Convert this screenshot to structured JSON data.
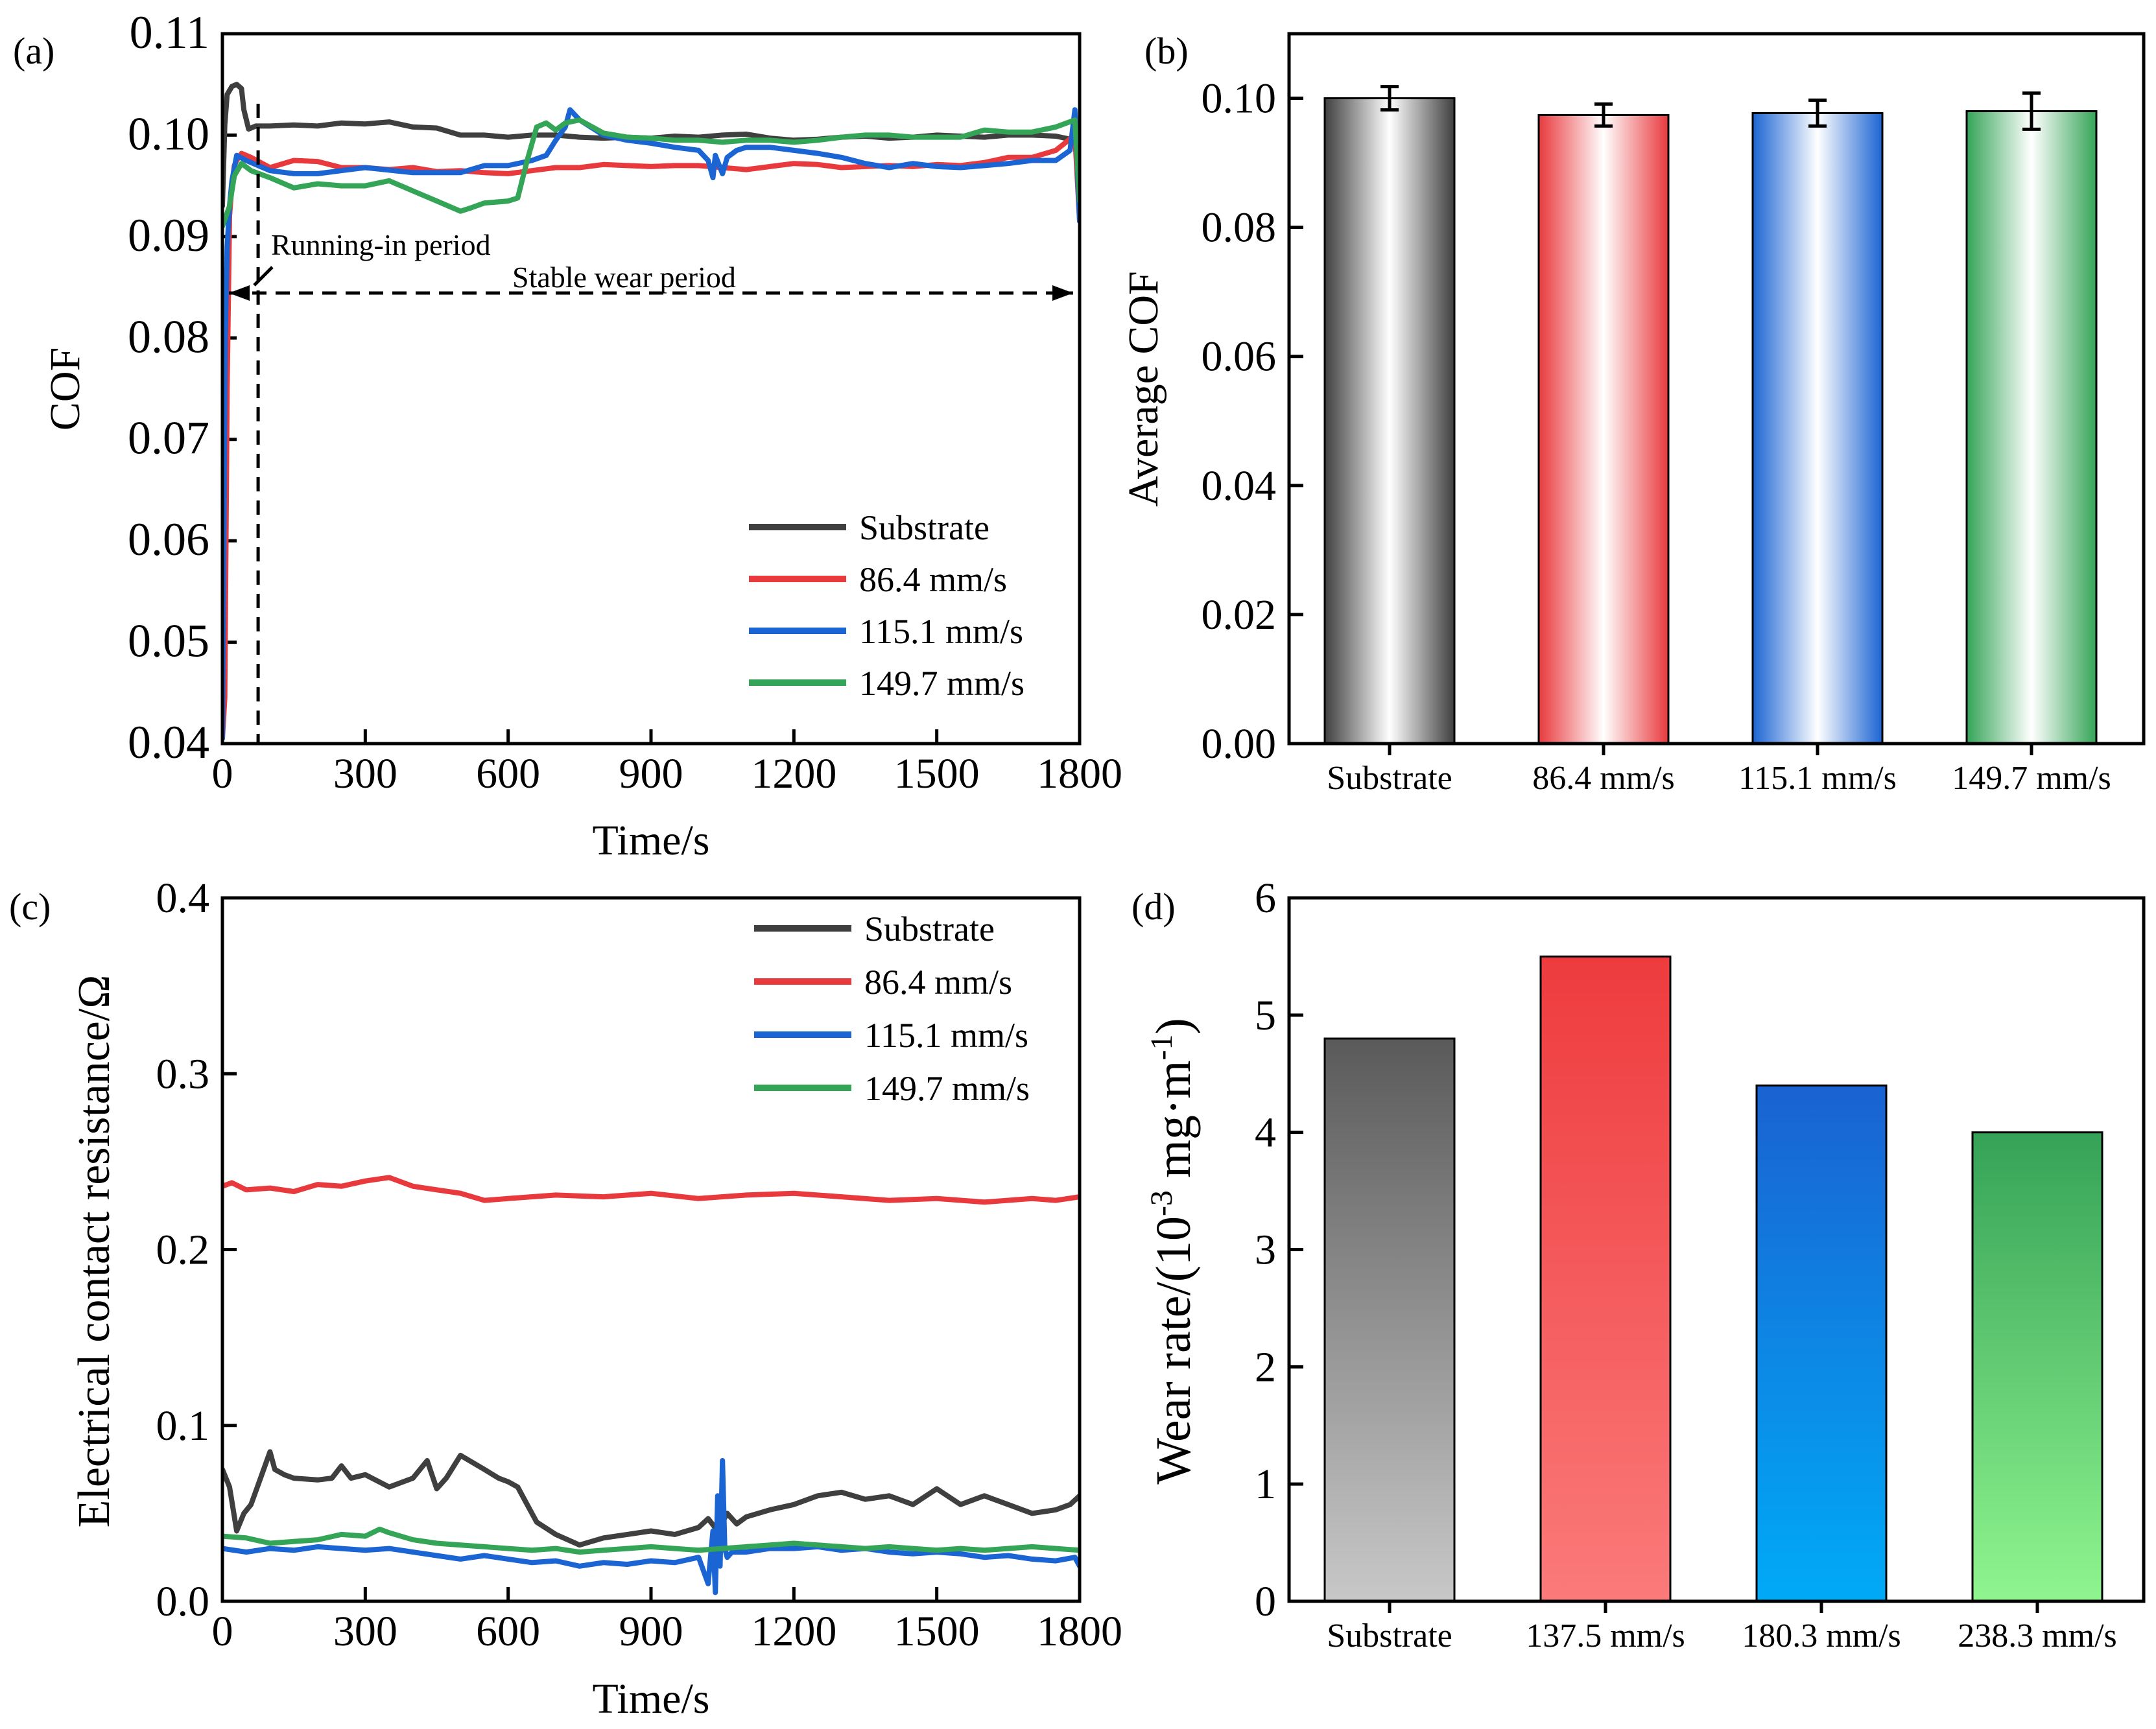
{
  "chart_data": [
    {
      "panel": "(a)",
      "type": "line",
      "xlabel": "Time/s",
      "ylabel": "COF",
      "xlim": [
        0,
        1800
      ],
      "ylim": [
        0.04,
        0.11
      ],
      "xticks": [
        "0",
        "300",
        "600",
        "900",
        "1200",
        "1500",
        "1800"
      ],
      "yticks": [
        "0.04",
        "0.05",
        "0.06",
        "0.07",
        "0.08",
        "0.09",
        "0.10",
        "0.11"
      ],
      "annotations": {
        "running_in": "Running-in period",
        "stable": "Stable wear period",
        "divider_x": 75
      },
      "legend_position": "bottom-right",
      "series": [
        {
          "name": "Substrate",
          "color": "#3f3f3f",
          "x": [
            0,
            5,
            10,
            20,
            30,
            40,
            45,
            55,
            70,
            100,
            150,
            200,
            250,
            300,
            350,
            400,
            450,
            500,
            550,
            600,
            650,
            700,
            750,
            800,
            850,
            900,
            950,
            1000,
            1050,
            1100,
            1150,
            1200,
            1250,
            1300,
            1350,
            1400,
            1450,
            1500,
            1550,
            1600,
            1650,
            1700,
            1750,
            1790,
            1800
          ],
          "y": [
            0.093,
            0.101,
            0.104,
            0.1048,
            0.105,
            0.1046,
            0.1025,
            0.1006,
            0.1009,
            0.1009,
            0.101,
            0.1009,
            0.1012,
            0.1011,
            0.1013,
            0.1008,
            0.1007,
            0.1,
            0.1,
            0.0998,
            0.1,
            0.1,
            0.0998,
            0.0997,
            0.0998,
            0.0997,
            0.0999,
            0.0998,
            0.1,
            0.1001,
            0.0997,
            0.0995,
            0.0996,
            0.0998,
            0.0999,
            0.0997,
            0.0998,
            0.1,
            0.0999,
            0.0998,
            0.1,
            0.1,
            0.0999,
            0.0995,
            0.0993
          ]
        },
        {
          "name": "86.4 mm/s",
          "color": "#e8393d",
          "x": [
            0,
            5,
            10,
            15,
            20,
            25,
            30,
            40,
            60,
            100,
            150,
            200,
            250,
            300,
            350,
            400,
            450,
            500,
            550,
            600,
            650,
            700,
            750,
            800,
            850,
            900,
            950,
            1000,
            1050,
            1100,
            1150,
            1200,
            1250,
            1300,
            1350,
            1400,
            1450,
            1500,
            1550,
            1600,
            1650,
            1700,
            1750,
            1790,
            1800
          ],
          "y": [
            0.0405,
            0.0445,
            0.075,
            0.092,
            0.095,
            0.097,
            0.0975,
            0.0982,
            0.0978,
            0.0968,
            0.0975,
            0.0974,
            0.0968,
            0.0968,
            0.0966,
            0.0968,
            0.0964,
            0.0965,
            0.0963,
            0.0962,
            0.0965,
            0.0968,
            0.0968,
            0.0971,
            0.097,
            0.0969,
            0.097,
            0.097,
            0.0968,
            0.0966,
            0.0969,
            0.0972,
            0.0971,
            0.0968,
            0.0969,
            0.097,
            0.0969,
            0.0971,
            0.097,
            0.0973,
            0.0978,
            0.0978,
            0.0985,
            0.1,
            0.0915
          ]
        },
        {
          "name": "115.1 mm/s",
          "color": "#1b64d3",
          "x": [
            0,
            3,
            6,
            10,
            15,
            20,
            30,
            50,
            100,
            150,
            200,
            250,
            300,
            400,
            500,
            550,
            600,
            650,
            680,
            700,
            720,
            730,
            750,
            800,
            850,
            900,
            950,
            1000,
            1020,
            1030,
            1035,
            1050,
            1060,
            1080,
            1100,
            1150,
            1200,
            1250,
            1300,
            1350,
            1400,
            1450,
            1500,
            1550,
            1600,
            1650,
            1700,
            1750,
            1780,
            1790,
            1800
          ],
          "y": [
            0.0405,
            0.06,
            0.08,
            0.089,
            0.093,
            0.0955,
            0.098,
            0.0975,
            0.0965,
            0.0962,
            0.0962,
            0.0965,
            0.0968,
            0.0963,
            0.0963,
            0.097,
            0.097,
            0.0975,
            0.098,
            0.0995,
            0.1008,
            0.1025,
            0.1015,
            0.1,
            0.0995,
            0.0992,
            0.0988,
            0.0985,
            0.0975,
            0.0958,
            0.098,
            0.0962,
            0.0978,
            0.0985,
            0.0988,
            0.0988,
            0.0985,
            0.0982,
            0.0978,
            0.0972,
            0.0968,
            0.0972,
            0.0969,
            0.0968,
            0.097,
            0.0972,
            0.0975,
            0.0975,
            0.0985,
            0.1025,
            0.0915
          ]
        },
        {
          "name": "149.7 mm/s",
          "color": "#34a457",
          "x": [
            0,
            15,
            25,
            40,
            60,
            100,
            150,
            200,
            250,
            300,
            350,
            400,
            450,
            500,
            520,
            550,
            600,
            620,
            640,
            660,
            680,
            700,
            720,
            750,
            800,
            850,
            900,
            950,
            1000,
            1050,
            1100,
            1150,
            1200,
            1250,
            1300,
            1350,
            1400,
            1450,
            1500,
            1550,
            1600,
            1650,
            1700,
            1750,
            1790,
            1800
          ],
          "y": [
            0.091,
            0.093,
            0.096,
            0.0972,
            0.0965,
            0.0958,
            0.0948,
            0.0952,
            0.095,
            0.095,
            0.0955,
            0.0945,
            0.0935,
            0.0925,
            0.0928,
            0.0933,
            0.0935,
            0.0938,
            0.0975,
            0.1008,
            0.1012,
            0.1005,
            0.1012,
            0.1015,
            0.1002,
            0.0998,
            0.0997,
            0.0995,
            0.0995,
            0.0993,
            0.0995,
            0.0995,
            0.0993,
            0.0995,
            0.0998,
            0.1,
            0.1,
            0.0998,
            0.0998,
            0.0998,
            0.1005,
            0.1003,
            0.1003,
            0.1008,
            0.1015,
            0.0935
          ]
        }
      ]
    },
    {
      "panel": "(b)",
      "type": "bar",
      "xlabel": "",
      "ylabel": "Average COF",
      "ylim": [
        0,
        0.11
      ],
      "yticks": [
        "0.00",
        "0.02",
        "0.04",
        "0.06",
        "0.08",
        "0.10"
      ],
      "categories": [
        "Substrate",
        "86.4 mm/s",
        "115.1 mm/s",
        "149.7 mm/s"
      ],
      "values": [
        0.1,
        0.0974,
        0.0977,
        0.098
      ],
      "errors": [
        0.0018,
        0.0017,
        0.002,
        0.0028
      ],
      "colors": [
        "#3f3f3f",
        "#e8393d",
        "#1b64d3",
        "#34a457"
      ]
    },
    {
      "panel": "(c)",
      "type": "line",
      "xlabel": "Time/s",
      "ylabel": "Electrical contact resistance/Ω",
      "xlim": [
        0,
        1800
      ],
      "ylim": [
        0,
        0.4
      ],
      "xticks": [
        "0",
        "300",
        "600",
        "900",
        "1200",
        "1500",
        "1800"
      ],
      "yticks": [
        "0.0",
        "0.1",
        "0.2",
        "0.3",
        "0.4"
      ],
      "legend_position": "top-right",
      "series": [
        {
          "name": "Substrate",
          "color": "#3f3f3f",
          "x": [
            0,
            15,
            30,
            45,
            60,
            80,
            100,
            110,
            130,
            150,
            200,
            230,
            250,
            270,
            300,
            350,
            400,
            430,
            450,
            470,
            500,
            550,
            580,
            600,
            620,
            640,
            660,
            700,
            750,
            800,
            850,
            900,
            950,
            1000,
            1020,
            1040,
            1060,
            1080,
            1100,
            1150,
            1200,
            1250,
            1300,
            1350,
            1400,
            1450,
            1500,
            1550,
            1600,
            1650,
            1700,
            1750,
            1780,
            1800
          ],
          "y": [
            0.075,
            0.065,
            0.04,
            0.05,
            0.055,
            0.07,
            0.085,
            0.075,
            0.072,
            0.07,
            0.069,
            0.07,
            0.077,
            0.07,
            0.072,
            0.065,
            0.07,
            0.08,
            0.064,
            0.07,
            0.083,
            0.075,
            0.07,
            0.068,
            0.065,
            0.055,
            0.045,
            0.038,
            0.032,
            0.036,
            0.038,
            0.04,
            0.038,
            0.042,
            0.047,
            0.04,
            0.05,
            0.044,
            0.048,
            0.052,
            0.055,
            0.06,
            0.062,
            0.058,
            0.06,
            0.055,
            0.064,
            0.055,
            0.06,
            0.055,
            0.05,
            0.052,
            0.055,
            0.06
          ]
        },
        {
          "name": "86.4 mm/s",
          "color": "#e8393d",
          "x": [
            0,
            20,
            50,
            100,
            150,
            200,
            250,
            300,
            350,
            400,
            450,
            500,
            550,
            600,
            700,
            800,
            900,
            1000,
            1100,
            1200,
            1300,
            1400,
            1500,
            1600,
            1700,
            1750,
            1800
          ],
          "y": [
            0.236,
            0.238,
            0.234,
            0.235,
            0.233,
            0.237,
            0.236,
            0.239,
            0.241,
            0.236,
            0.234,
            0.232,
            0.228,
            0.229,
            0.231,
            0.23,
            0.232,
            0.229,
            0.231,
            0.232,
            0.23,
            0.228,
            0.229,
            0.227,
            0.229,
            0.228,
            0.23
          ]
        },
        {
          "name": "115.1 mm/s",
          "color": "#1b64d3",
          "x": [
            0,
            50,
            100,
            150,
            200,
            250,
            300,
            350,
            400,
            450,
            500,
            550,
            600,
            650,
            700,
            750,
            800,
            850,
            900,
            950,
            1000,
            1020,
            1030,
            1035,
            1040,
            1045,
            1050,
            1055,
            1060,
            1070,
            1100,
            1150,
            1200,
            1250,
            1300,
            1350,
            1400,
            1450,
            1500,
            1550,
            1600,
            1650,
            1700,
            1750,
            1790,
            1800
          ],
          "y": [
            0.03,
            0.028,
            0.03,
            0.029,
            0.031,
            0.03,
            0.029,
            0.03,
            0.028,
            0.026,
            0.024,
            0.026,
            0.024,
            0.022,
            0.023,
            0.02,
            0.022,
            0.021,
            0.023,
            0.022,
            0.025,
            0.01,
            0.04,
            0.005,
            0.06,
            0.02,
            0.08,
            0.03,
            0.025,
            0.028,
            0.028,
            0.03,
            0.03,
            0.031,
            0.029,
            0.03,
            0.028,
            0.027,
            0.028,
            0.027,
            0.025,
            0.026,
            0.024,
            0.023,
            0.025,
            0.02
          ]
        },
        {
          "name": "149.7 mm/s",
          "color": "#34a457",
          "x": [
            0,
            50,
            100,
            150,
            200,
            250,
            300,
            330,
            350,
            400,
            450,
            500,
            550,
            600,
            650,
            700,
            750,
            800,
            850,
            900,
            950,
            1000,
            1050,
            1100,
            1150,
            1200,
            1250,
            1300,
            1350,
            1400,
            1450,
            1500,
            1550,
            1600,
            1650,
            1700,
            1750,
            1800
          ],
          "y": [
            0.037,
            0.036,
            0.033,
            0.034,
            0.035,
            0.038,
            0.037,
            0.041,
            0.039,
            0.035,
            0.033,
            0.032,
            0.031,
            0.03,
            0.029,
            0.03,
            0.028,
            0.029,
            0.03,
            0.031,
            0.03,
            0.029,
            0.03,
            0.031,
            0.032,
            0.033,
            0.032,
            0.031,
            0.03,
            0.031,
            0.03,
            0.029,
            0.03,
            0.029,
            0.03,
            0.031,
            0.03,
            0.029
          ]
        }
      ]
    },
    {
      "panel": "(d)",
      "type": "bar",
      "xlabel": "",
      "ylabel_prefix": "Wear rate/(10",
      "ylabel_exp1": "-3",
      "ylabel_mid": " mg·m",
      "ylabel_exp2": "-1",
      "ylabel_suffix": ")",
      "ylim": [
        0,
        6
      ],
      "yticks": [
        "0",
        "1",
        "2",
        "3",
        "4",
        "5",
        "6"
      ],
      "categories": [
        "Substrate",
        "137.5 mm/s",
        "180.3 mm/s",
        "238.3 mm/s"
      ],
      "values": [
        4.8,
        5.5,
        4.4,
        4.0
      ],
      "colors": [
        [
          "#5a5a5a",
          "#c8c8c8"
        ],
        [
          "#ee3b3e",
          "#fb7a7a"
        ],
        [
          "#1a62d2",
          "#00aaf7"
        ],
        [
          "#35a257",
          "#90f58f"
        ]
      ]
    }
  ]
}
